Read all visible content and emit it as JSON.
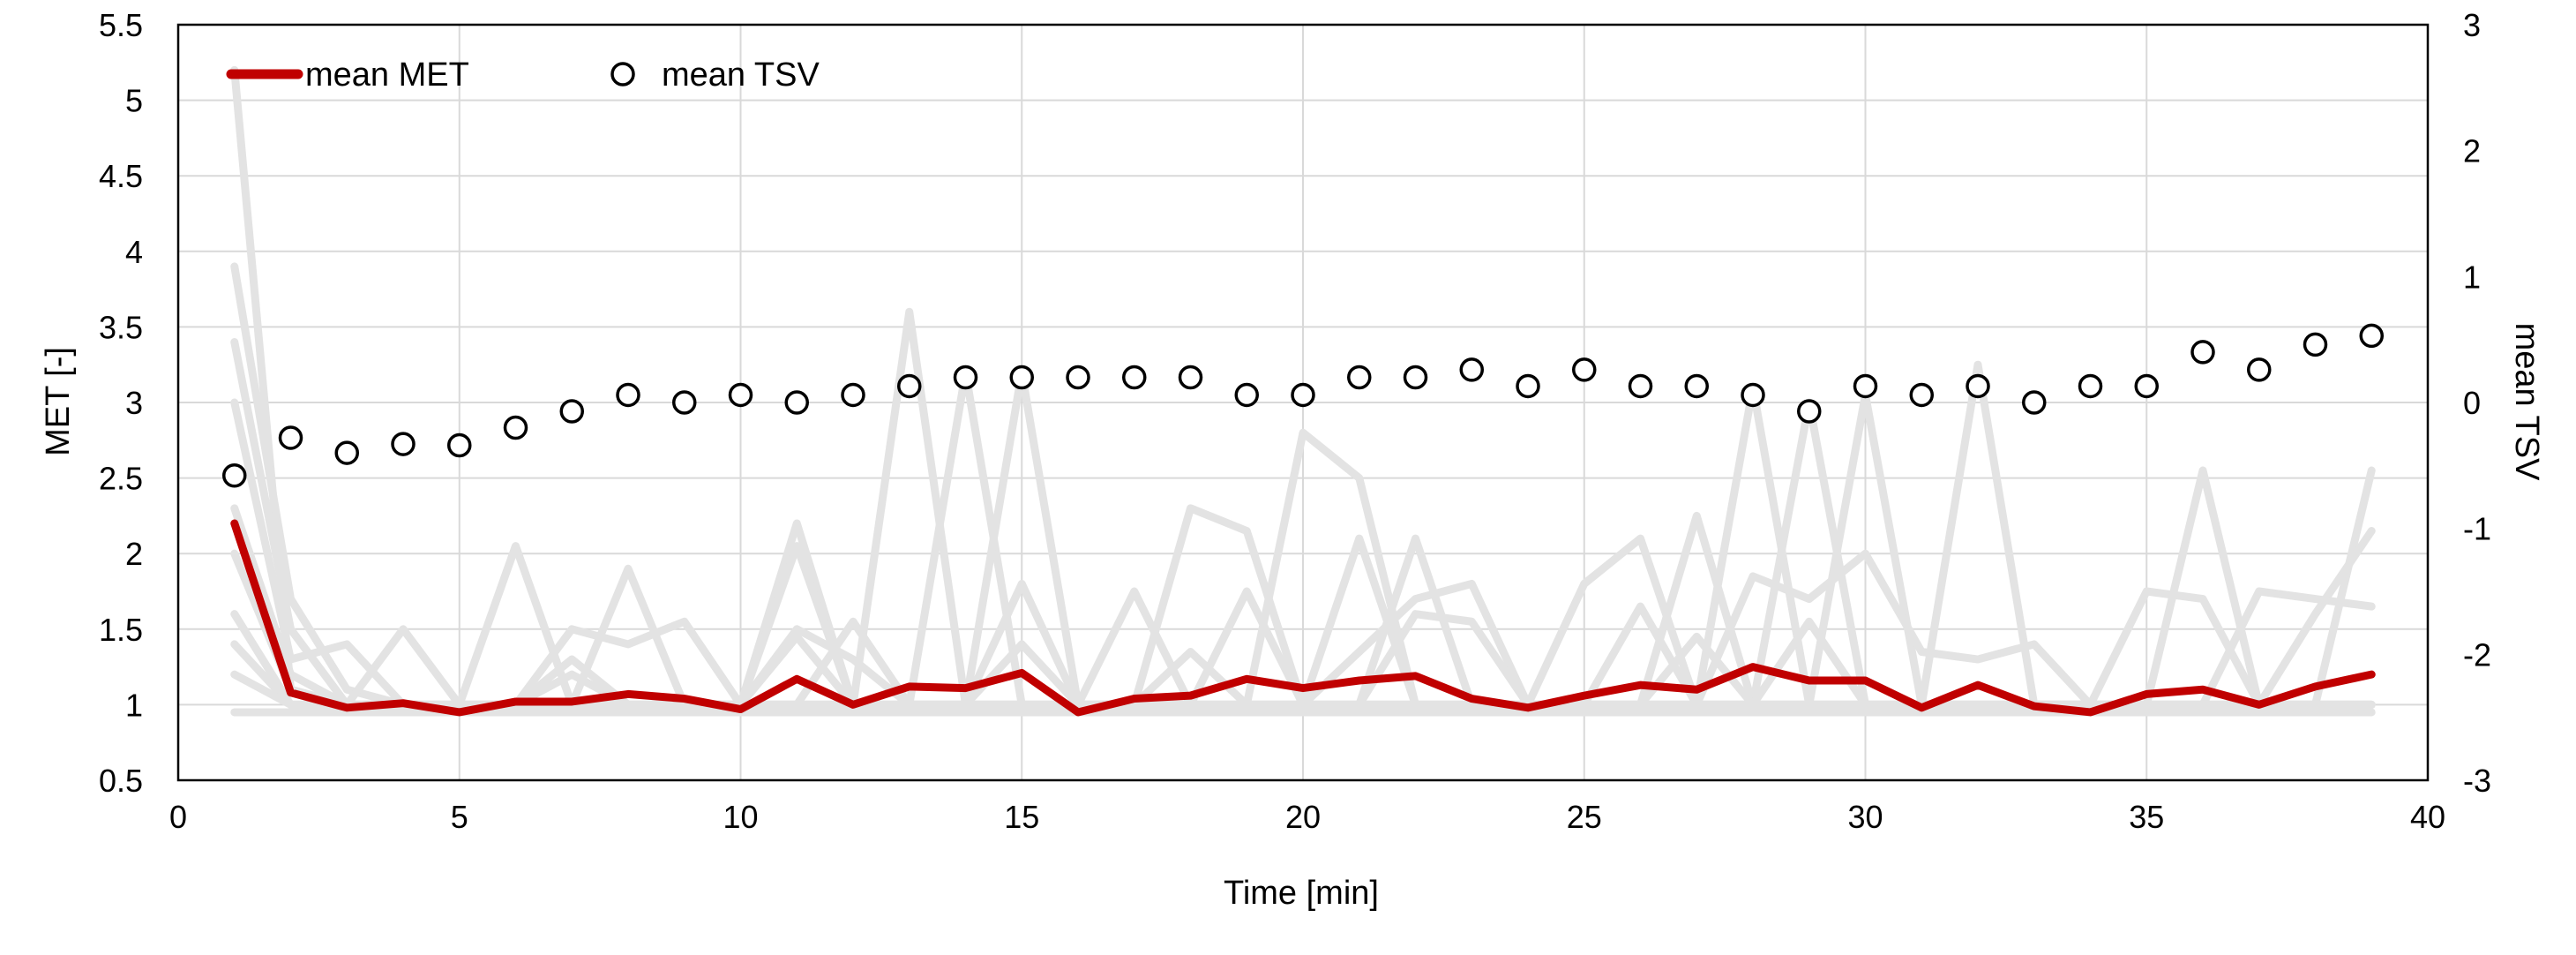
{
  "chart_data": {
    "type": "line",
    "title": "",
    "xlabel": "Time [min]",
    "ylabel": "MET [-]",
    "y2label": "mean TSV",
    "xlim": [
      0,
      40
    ],
    "ylim": [
      0.5,
      5.5
    ],
    "y2lim": [
      -3,
      3
    ],
    "x_ticks": [
      0,
      5,
      10,
      15,
      20,
      25,
      30,
      35,
      40
    ],
    "y_ticks": [
      0.5,
      1,
      1.5,
      2,
      2.5,
      3,
      3.5,
      4,
      4.5,
      5,
      5.5
    ],
    "y2_ticks": [
      -3,
      -2,
      -1,
      0,
      1,
      2,
      3
    ],
    "grid": true,
    "legend": {
      "placement": "top-left",
      "entries": [
        {
          "label": "mean MET",
          "marker": "line",
          "color": "#C00000"
        },
        {
          "label": "mean TSV",
          "marker": "open-circle",
          "color": "#000000"
        }
      ]
    },
    "x": [
      1,
      2,
      3,
      4,
      5,
      6,
      7,
      8,
      9,
      10,
      11,
      12,
      13,
      14,
      15,
      16,
      17,
      18,
      19,
      20,
      21,
      22,
      23,
      24,
      25,
      26,
      27,
      28,
      29,
      30,
      31,
      32,
      33,
      34,
      35,
      36,
      37,
      38,
      39
    ],
    "series": [
      {
        "name": "mean MET",
        "axis": "left",
        "color": "#C00000",
        "values": [
          2.2,
          1.08,
          0.98,
          1.01,
          0.95,
          1.02,
          1.02,
          1.07,
          1.04,
          0.97,
          1.17,
          1.0,
          1.12,
          1.11,
          1.21,
          0.95,
          1.04,
          1.06,
          1.17,
          1.11,
          1.16,
          1.19,
          1.04,
          0.98,
          1.06,
          1.13,
          1.1,
          1.25,
          1.16,
          1.16,
          0.98,
          1.13,
          0.99,
          0.95,
          1.07,
          1.1,
          1.0,
          1.12,
          1.2
        ]
      },
      {
        "name": "mean TSV",
        "axis": "right",
        "color": "#000000",
        "values": [
          -0.58,
          -0.28,
          -0.4,
          -0.33,
          -0.34,
          -0.2,
          -0.07,
          0.06,
          0.0,
          0.06,
          0.0,
          0.06,
          0.13,
          0.2,
          0.2,
          0.2,
          0.2,
          0.2,
          0.06,
          0.06,
          0.2,
          0.2,
          0.26,
          0.13,
          0.26,
          0.13,
          0.13,
          0.06,
          -0.07,
          0.13,
          0.06,
          0.13,
          0.0,
          0.13,
          0.13,
          0.4,
          0.26,
          0.46,
          0.53
        ]
      }
    ],
    "background_series_color": "#E3E3E3",
    "background_series": [
      [
        5.2,
        1.1,
        1.0,
        1.0,
        0.95,
        1.0,
        1.0,
        1.0,
        1.0,
        1.0,
        1.0,
        1.0,
        1.0,
        1.0,
        1.0,
        1.0,
        1.0,
        1.0,
        1.0,
        1.0,
        1.0,
        1.0,
        1.0,
        1.0,
        1.0,
        1.0,
        1.0,
        1.0,
        1.0,
        1.0,
        1.0,
        1.0,
        1.0,
        1.0,
        1.0,
        1.0,
        1.0,
        1.0,
        1.0
      ],
      [
        3.9,
        1.7,
        1.1,
        1.0,
        1.0,
        1.0,
        1.0,
        1.0,
        1.0,
        1.0,
        1.0,
        1.0,
        3.6,
        1.0,
        1.0,
        1.0,
        1.0,
        1.0,
        1.0,
        1.0,
        1.0,
        1.0,
        1.0,
        1.0,
        1.0,
        1.0,
        1.0,
        1.0,
        1.0,
        1.0,
        1.0,
        1.0,
        1.0,
        1.0,
        1.0,
        2.55,
        1.0,
        1.0,
        1.0
      ],
      [
        3.4,
        1.5,
        1.0,
        1.5,
        1.0,
        2.05,
        1.0,
        1.9,
        1.0,
        1.0,
        2.2,
        1.0,
        1.0,
        3.2,
        1.0,
        1.0,
        1.0,
        1.0,
        1.0,
        2.8,
        2.5,
        1.0,
        1.0,
        1.0,
        1.0,
        1.0,
        1.0,
        3.1,
        1.0,
        3.05,
        1.0,
        3.25,
        1.0,
        1.0,
        1.0,
        1.0,
        1.0,
        1.0,
        2.55
      ],
      [
        3.0,
        1.3,
        1.4,
        1.0,
        1.0,
        1.0,
        1.5,
        1.4,
        1.55,
        1.0,
        1.0,
        1.0,
        1.0,
        1.0,
        3.2,
        1.0,
        1.0,
        2.3,
        2.15,
        1.0,
        2.1,
        1.0,
        1.0,
        1.0,
        1.0,
        1.0,
        2.25,
        1.0,
        3.0,
        1.0,
        1.0,
        1.0,
        1.0,
        1.0,
        1.75,
        1.7,
        1.0,
        1.6,
        2.15
      ],
      [
        2.3,
        1.2,
        1.0,
        1.0,
        1.0,
        1.0,
        1.3,
        1.0,
        1.0,
        1.0,
        2.05,
        1.0,
        1.0,
        1.0,
        1.8,
        1.0,
        1.75,
        1.0,
        1.75,
        1.0,
        1.0,
        2.1,
        1.0,
        1.0,
        1.8,
        2.1,
        1.0,
        1.85,
        1.7,
        2.0,
        1.35,
        1.3,
        1.4,
        1.0,
        1.0,
        1.0,
        1.75,
        1.7,
        1.65
      ],
      [
        2.0,
        1.1,
        1.0,
        1.0,
        1.0,
        1.0,
        1.2,
        1.0,
        1.0,
        1.0,
        1.5,
        1.3,
        1.0,
        1.0,
        1.4,
        1.0,
        1.0,
        1.35,
        1.0,
        1.0,
        1.35,
        1.7,
        1.8,
        1.0,
        1.0,
        1.65,
        1.0,
        1.0,
        1.55,
        1.0,
        1.0,
        1.0,
        1.0,
        1.0,
        1.0,
        1.0,
        1.0,
        1.0,
        1.0
      ],
      [
        1.6,
        1.0,
        1.0,
        1.0,
        1.0,
        1.0,
        1.0,
        1.0,
        1.0,
        1.0,
        1.0,
        1.55,
        1.0,
        1.0,
        1.0,
        1.0,
        1.0,
        1.0,
        1.0,
        1.0,
        1.0,
        1.6,
        1.55,
        1.0,
        1.0,
        1.0,
        1.45,
        1.0,
        1.0,
        1.0,
        1.0,
        1.0,
        1.0,
        1.0,
        1.0,
        1.0,
        1.0,
        1.0,
        1.0
      ],
      [
        1.4,
        1.0,
        1.0,
        1.0,
        1.0,
        1.0,
        1.0,
        1.0,
        1.0,
        1.0,
        1.45,
        1.0,
        1.0,
        1.0,
        1.0,
        1.0,
        1.0,
        1.0,
        1.0,
        1.0,
        1.0,
        1.0,
        1.0,
        1.0,
        1.0,
        1.0,
        1.0,
        1.0,
        1.0,
        1.0,
        1.0,
        1.0,
        1.0,
        1.0,
        1.0,
        1.0,
        1.0,
        1.0,
        1.0
      ],
      [
        1.2,
        1.0,
        1.0,
        1.0,
        1.0,
        1.0,
        1.0,
        1.0,
        1.0,
        1.0,
        1.0,
        1.0,
        1.0,
        1.0,
        1.0,
        1.0,
        1.0,
        1.0,
        1.0,
        1.0,
        1.0,
        1.0,
        1.0,
        1.0,
        1.0,
        1.0,
        1.0,
        1.0,
        1.0,
        1.0,
        1.0,
        1.0,
        1.0,
        1.0,
        1.0,
        1.0,
        1.0,
        1.0,
        1.0
      ],
      [
        0.95,
        0.95,
        0.95,
        0.95,
        0.95,
        0.95,
        0.95,
        0.95,
        0.95,
        0.95,
        0.95,
        0.95,
        0.95,
        0.95,
        0.95,
        0.95,
        0.95,
        0.95,
        0.95,
        0.95,
        0.95,
        0.95,
        0.95,
        0.95,
        0.95,
        0.95,
        0.95,
        0.95,
        0.95,
        0.95,
        0.95,
        0.95,
        0.95,
        0.95,
        0.95,
        0.95,
        0.95,
        0.95,
        0.95
      ]
    ]
  }
}
